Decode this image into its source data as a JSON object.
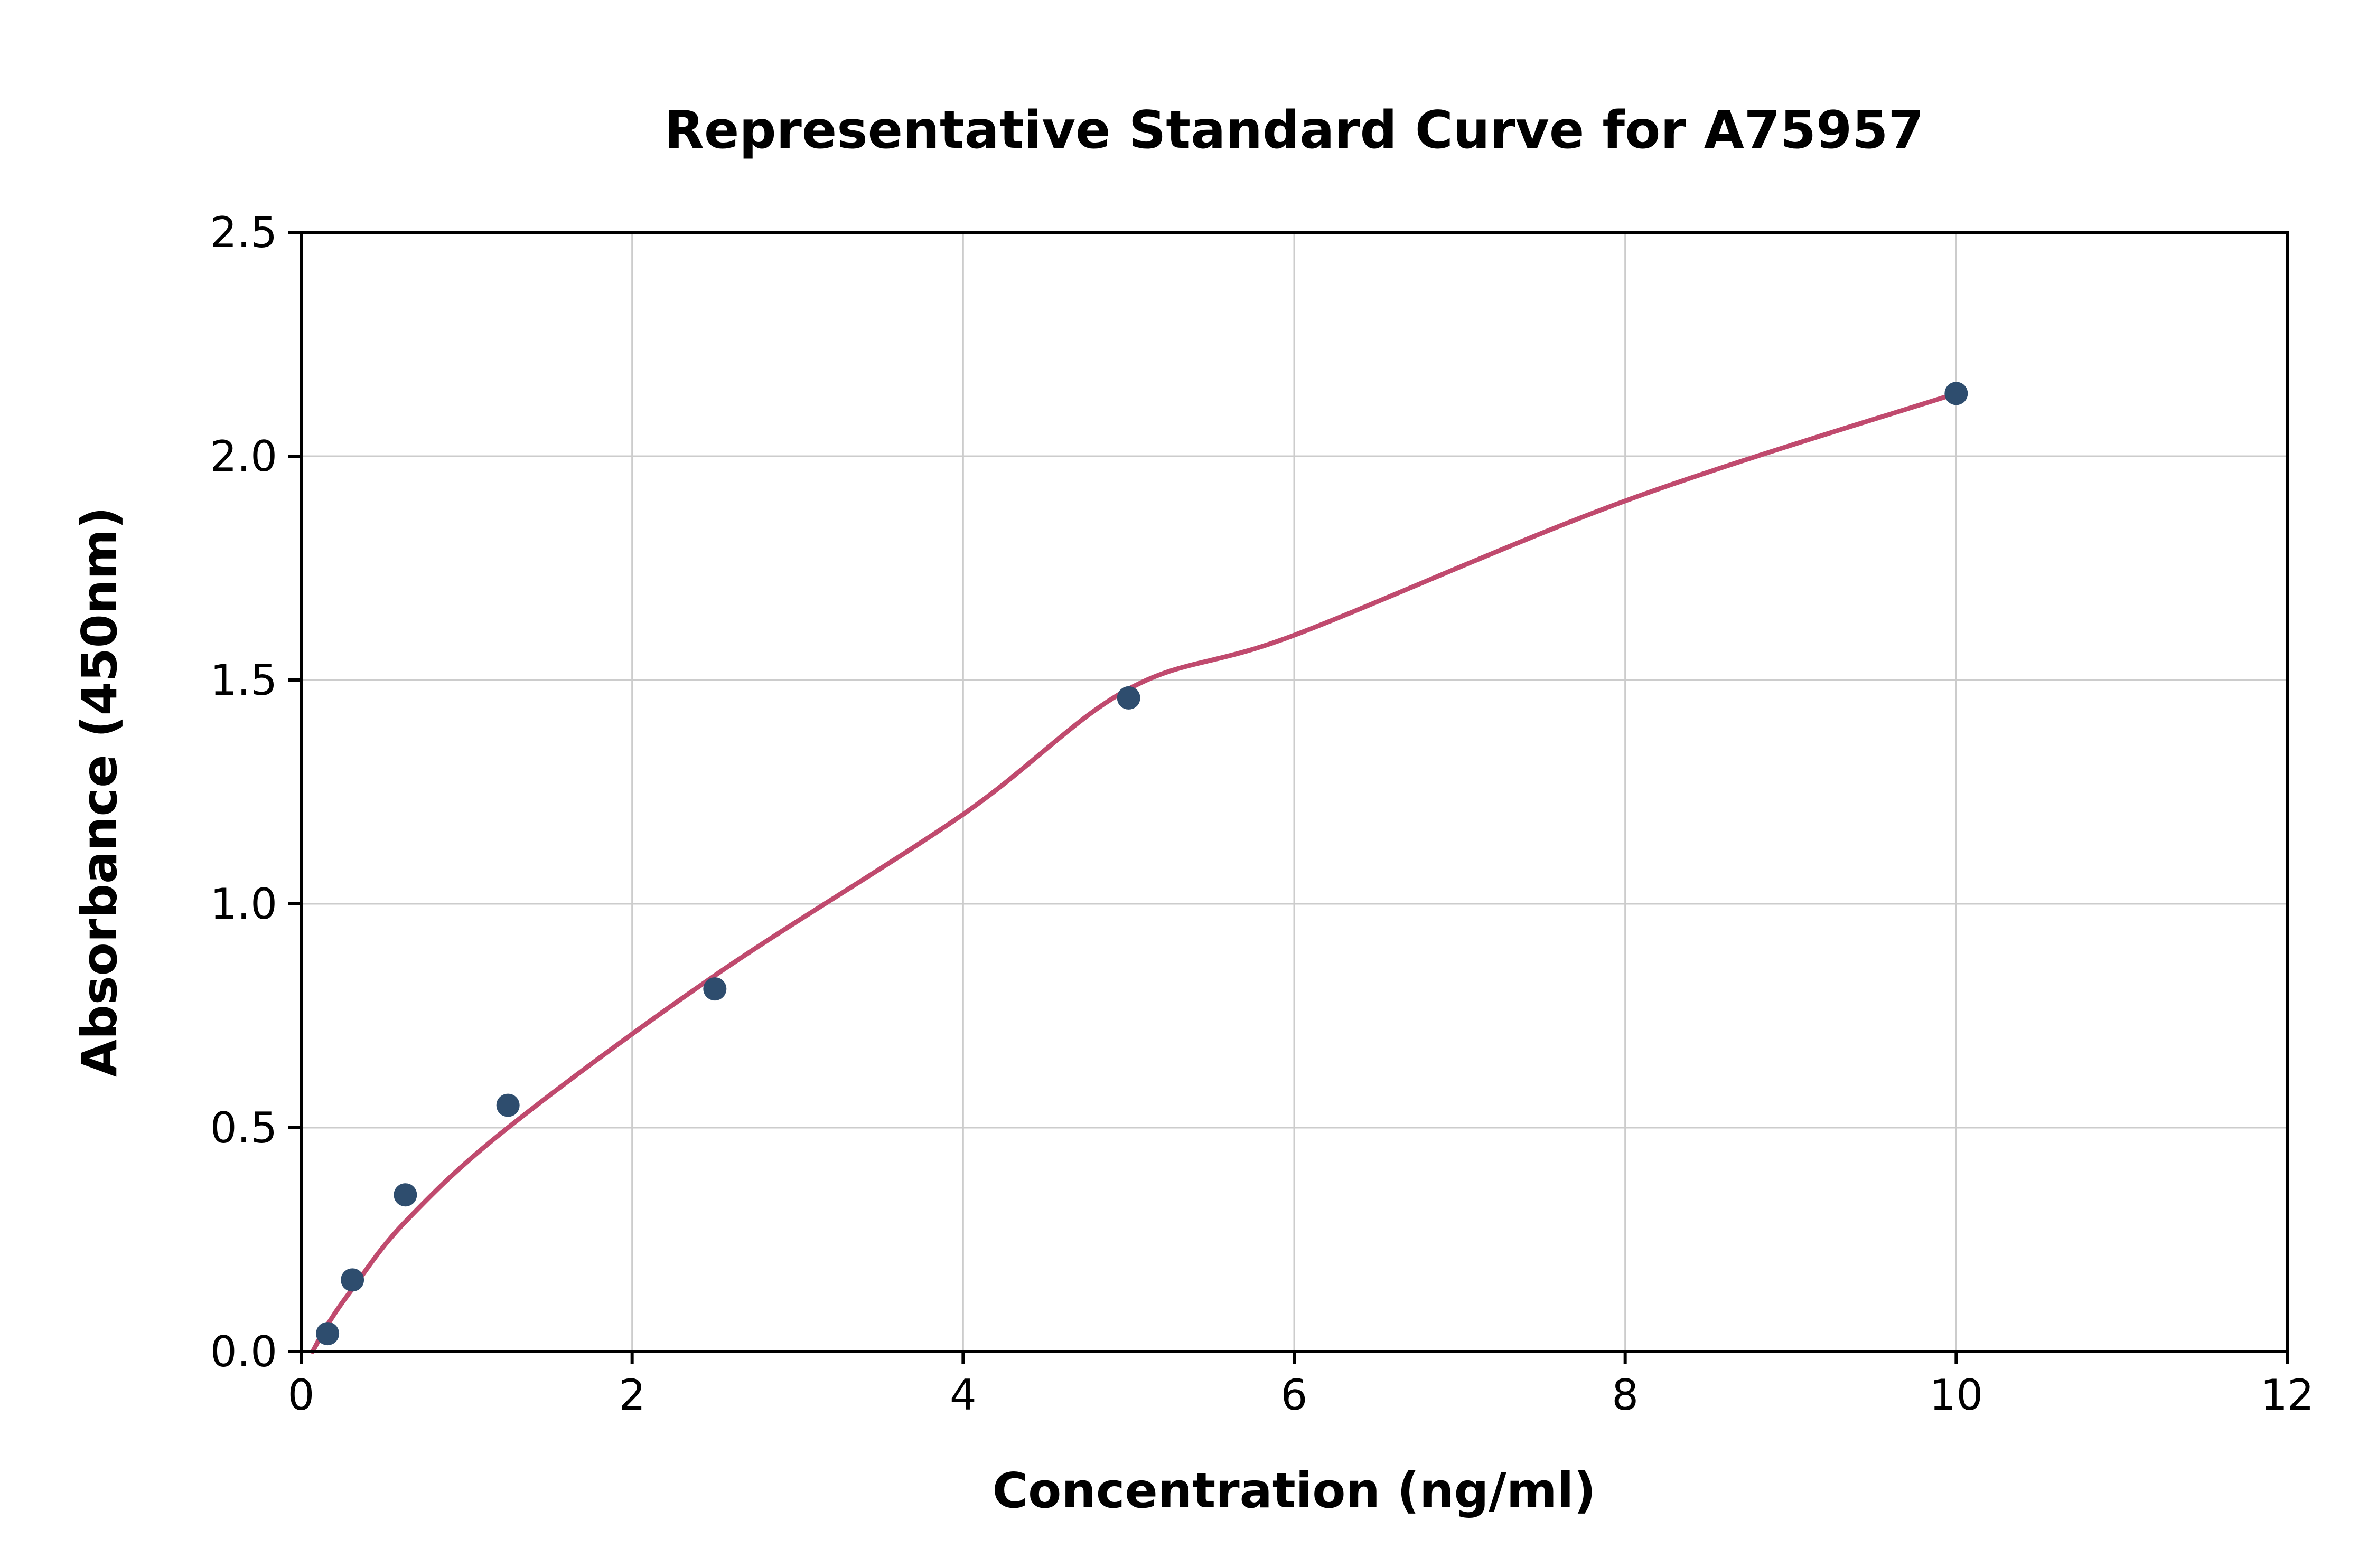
{
  "chart_data": {
    "type": "scatter",
    "title": "Representative Standard Curve for A75957",
    "xlabel": "Concentration (ng/ml)",
    "ylabel": "Absorbance (450nm)",
    "xlim": [
      0,
      12
    ],
    "ylim": [
      0,
      2.5
    ],
    "x_ticks": [
      0,
      2,
      4,
      6,
      8,
      10,
      12
    ],
    "x_tick_labels": [
      "0",
      "2",
      "4",
      "6",
      "8",
      "10",
      "12"
    ],
    "y_ticks": [
      0.0,
      0.5,
      1.0,
      1.5,
      2.0,
      2.5
    ],
    "y_tick_labels": [
      "0.0",
      "0.5",
      "1.0",
      "1.5",
      "2.0",
      "2.5"
    ],
    "grid": true,
    "legend": "none",
    "series": [
      {
        "name": "standards",
        "marker": "circle",
        "x": [
          0.16,
          0.31,
          0.63,
          1.25,
          2.5,
          5.0,
          10.0
        ],
        "y": [
          0.04,
          0.16,
          0.35,
          0.55,
          0.81,
          1.46,
          2.14
        ]
      }
    ],
    "fit_curve": {
      "name": "fitted-standard-curve",
      "x": [
        0.07,
        0.16,
        0.31,
        0.63,
        1.25,
        2.5,
        4.0,
        5.0,
        6.0,
        8.0,
        10.0
      ],
      "y": [
        0.0,
        0.06,
        0.14,
        0.29,
        0.5,
        0.84,
        1.2,
        1.48,
        1.6,
        1.9,
        2.14
      ]
    },
    "colors": {
      "point": "#2e4d6e",
      "curve": "#c04a6e",
      "grid": "#cccccc",
      "axis": "#000000",
      "background": "#ffffff"
    }
  }
}
